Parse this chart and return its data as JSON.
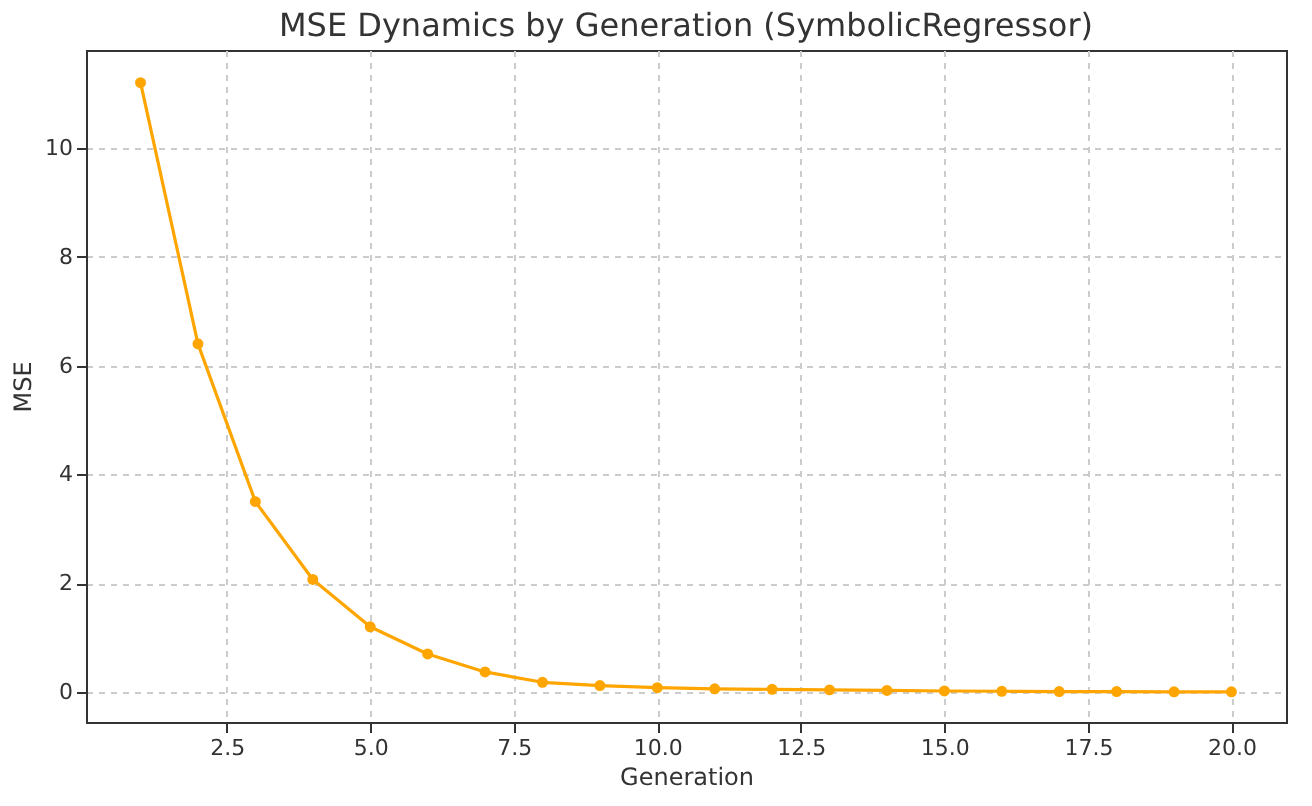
{
  "chart_data": {
    "type": "line",
    "title": "MSE Dynamics by Generation (SymbolicRegressor)",
    "xlabel": "Generation",
    "ylabel": "MSE",
    "x": [
      1,
      2,
      3,
      4,
      5,
      6,
      7,
      8,
      9,
      10,
      11,
      12,
      13,
      14,
      15,
      16,
      17,
      18,
      19,
      20
    ],
    "series": [
      {
        "color": "#ffa500",
        "values": [
          11.2,
          6.4,
          3.5,
          2.07,
          1.2,
          0.7,
          0.37,
          0.18,
          0.12,
          0.08,
          0.06,
          0.05,
          0.04,
          0.03,
          0.02,
          0.015,
          0.01,
          0.01,
          0.005,
          0.005
        ]
      }
    ],
    "xlim": [
      0.05,
      20.95
    ],
    "xticks": [
      {
        "value": 2.5,
        "label": "2.5"
      },
      {
        "value": 5,
        "label": "5.0"
      },
      {
        "value": 7.5,
        "label": "7.5"
      },
      {
        "value": 10,
        "label": "10.0"
      },
      {
        "value": 12.5,
        "label": "12.5"
      },
      {
        "value": 15,
        "label": "15.0"
      },
      {
        "value": 17.5,
        "label": "17.5"
      },
      {
        "value": 20,
        "label": "20.0"
      }
    ],
    "ylim": [
      -0.55,
      11.8
    ],
    "yticks": [
      0,
      2,
      4,
      6,
      8,
      10
    ],
    "grid": true,
    "marker": "circle",
    "line_style": "solid"
  }
}
